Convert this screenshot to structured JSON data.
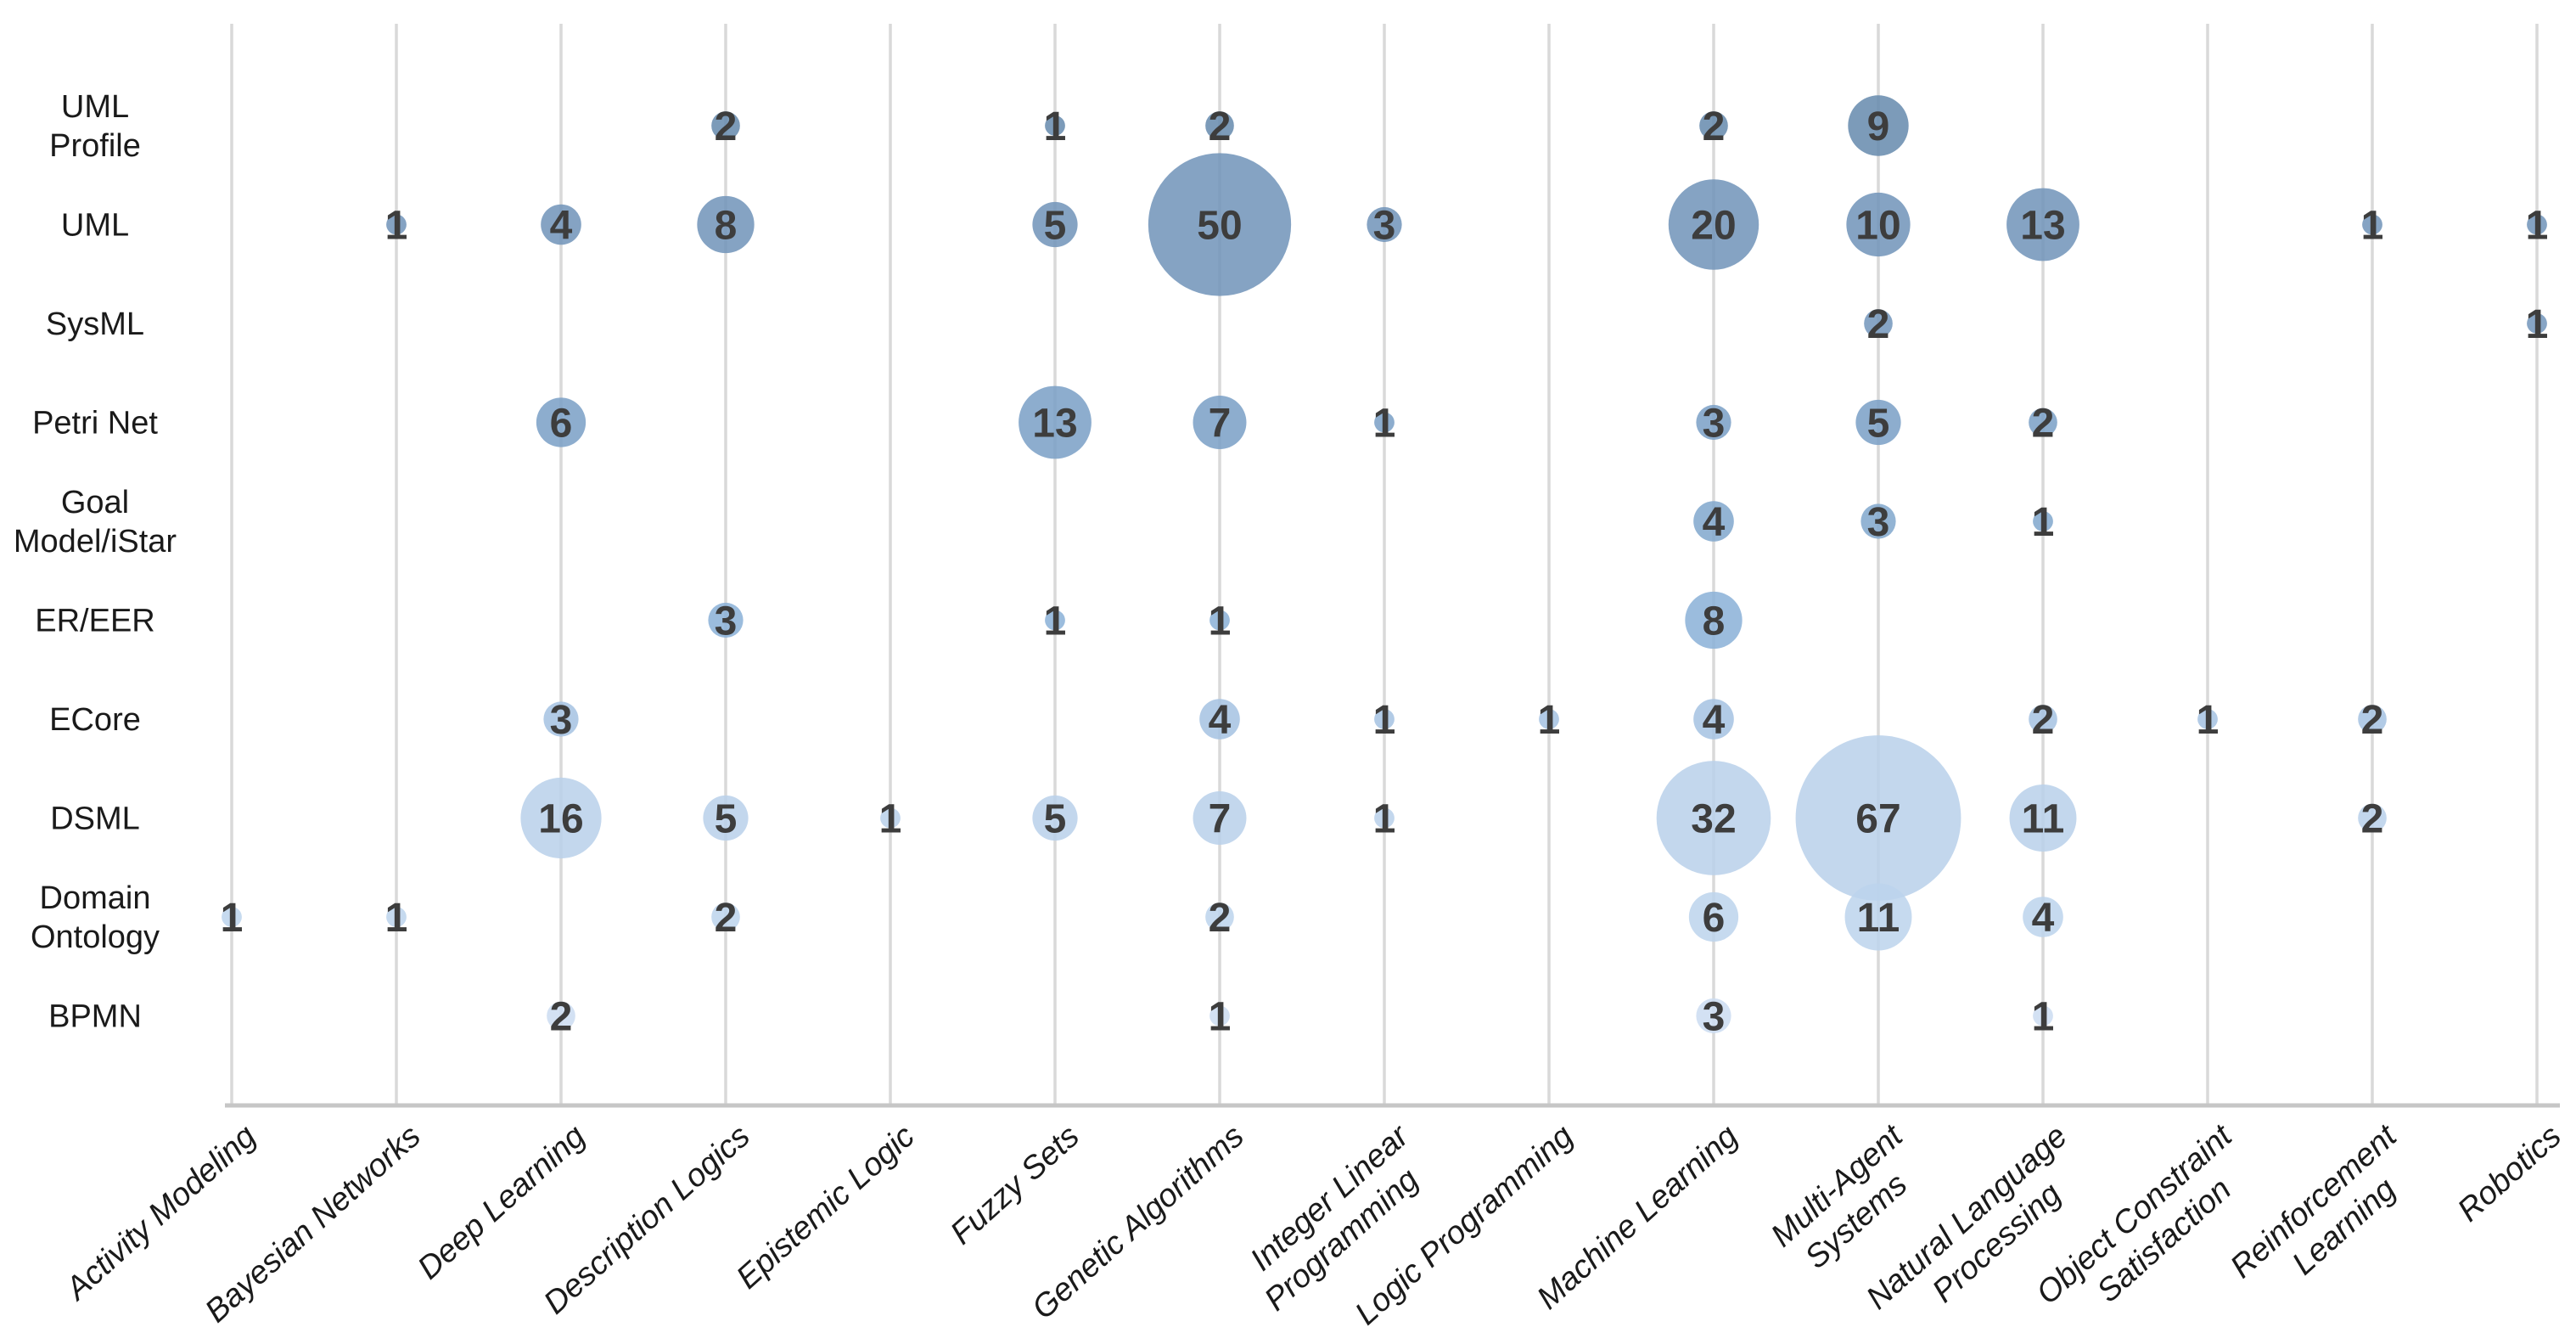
{
  "chart_data": {
    "type": "bubble",
    "title": "",
    "x_categories": [
      "Activity Modeling",
      "Bayesian Networks",
      "Deep Learning",
      "Description Logics",
      "Epistemic Logic",
      "Fuzzy Sets",
      "Genetic Algorithms",
      "Integer Linear Programming",
      "Logic Programming",
      "Machine Learning",
      "Multi-Agent Systems",
      "Natural Language Processing",
      "Object Constraint Satisfaction",
      "Reinforcement Learning",
      "Robotics"
    ],
    "y_categories": [
      "UML Profile",
      "UML",
      "SysML",
      "Petri Net",
      "Goal Model/iStar",
      "ER/EER",
      "ECore",
      "DSML",
      "Domain Ontology",
      "BPMN"
    ],
    "x_label_lines": {
      "Integer Linear Programming": [
        "Integer Linear",
        "Programming"
      ],
      "Multi-Agent Systems": [
        "Multi-Agent",
        "Systems"
      ],
      "Natural Language Processing": [
        "Natural Language",
        "Processing"
      ],
      "Object Constraint Satisfaction": [
        "Object Constraint",
        "Satisfaction"
      ],
      "Reinforcement Learning": [
        "Reinforcement",
        "Learning"
      ]
    },
    "y_label_lines": {
      "UML Profile": [
        "UML",
        "Profile"
      ],
      "Goal Model/iStar": [
        "Goal",
        "Model/iStar"
      ],
      "Domain Ontology": [
        "Domain",
        "Ontology"
      ]
    },
    "points": [
      {
        "row": "UML Profile",
        "col": "Description Logics",
        "value": 2
      },
      {
        "row": "UML Profile",
        "col": "Fuzzy Sets",
        "value": 1
      },
      {
        "row": "UML Profile",
        "col": "Genetic Algorithms",
        "value": 2
      },
      {
        "row": "UML Profile",
        "col": "Machine Learning",
        "value": 2
      },
      {
        "row": "UML Profile",
        "col": "Multi-Agent Systems",
        "value": 9
      },
      {
        "row": "UML",
        "col": "Bayesian Networks",
        "value": 1
      },
      {
        "row": "UML",
        "col": "Deep Learning",
        "value": 4
      },
      {
        "row": "UML",
        "col": "Description Logics",
        "value": 8
      },
      {
        "row": "UML",
        "col": "Fuzzy Sets",
        "value": 5
      },
      {
        "row": "UML",
        "col": "Genetic Algorithms",
        "value": 50
      },
      {
        "row": "UML",
        "col": "Integer Linear Programming",
        "value": 3
      },
      {
        "row": "UML",
        "col": "Machine Learning",
        "value": 20
      },
      {
        "row": "UML",
        "col": "Multi-Agent Systems",
        "value": 10
      },
      {
        "row": "UML",
        "col": "Natural Language Processing",
        "value": 13
      },
      {
        "row": "UML",
        "col": "Reinforcement Learning",
        "value": 1
      },
      {
        "row": "UML",
        "col": "Robotics",
        "value": 1
      },
      {
        "row": "SysML",
        "col": "Multi-Agent Systems",
        "value": 2
      },
      {
        "row": "SysML",
        "col": "Robotics",
        "value": 1
      },
      {
        "row": "Petri Net",
        "col": "Deep Learning",
        "value": 6
      },
      {
        "row": "Petri Net",
        "col": "Fuzzy Sets",
        "value": 13
      },
      {
        "row": "Petri Net",
        "col": "Genetic Algorithms",
        "value": 7
      },
      {
        "row": "Petri Net",
        "col": "Integer Linear Programming",
        "value": 1
      },
      {
        "row": "Petri Net",
        "col": "Machine Learning",
        "value": 3
      },
      {
        "row": "Petri Net",
        "col": "Multi-Agent Systems",
        "value": 5
      },
      {
        "row": "Petri Net",
        "col": "Natural Language Processing",
        "value": 2
      },
      {
        "row": "Goal Model/iStar",
        "col": "Machine Learning",
        "value": 4
      },
      {
        "row": "Goal Model/iStar",
        "col": "Multi-Agent Systems",
        "value": 3
      },
      {
        "row": "Goal Model/iStar",
        "col": "Natural Language Processing",
        "value": 1
      },
      {
        "row": "ER/EER",
        "col": "Description Logics",
        "value": 3
      },
      {
        "row": "ER/EER",
        "col": "Fuzzy Sets",
        "value": 1
      },
      {
        "row": "ER/EER",
        "col": "Genetic Algorithms",
        "value": 1
      },
      {
        "row": "ER/EER",
        "col": "Machine Learning",
        "value": 8
      },
      {
        "row": "ECore",
        "col": "Deep Learning",
        "value": 3
      },
      {
        "row": "ECore",
        "col": "Genetic Algorithms",
        "value": 4
      },
      {
        "row": "ECore",
        "col": "Integer Linear Programming",
        "value": 1
      },
      {
        "row": "ECore",
        "col": "Logic Programming",
        "value": 1
      },
      {
        "row": "ECore",
        "col": "Machine Learning",
        "value": 4
      },
      {
        "row": "ECore",
        "col": "Natural Language Processing",
        "value": 2
      },
      {
        "row": "ECore",
        "col": "Object Constraint Satisfaction",
        "value": 1
      },
      {
        "row": "ECore",
        "col": "Reinforcement Learning",
        "value": 2
      },
      {
        "row": "DSML",
        "col": "Deep Learning",
        "value": 16
      },
      {
        "row": "DSML",
        "col": "Description Logics",
        "value": 5
      },
      {
        "row": "DSML",
        "col": "Epistemic Logic",
        "value": 1
      },
      {
        "row": "DSML",
        "col": "Fuzzy Sets",
        "value": 5
      },
      {
        "row": "DSML",
        "col": "Genetic Algorithms",
        "value": 7
      },
      {
        "row": "DSML",
        "col": "Integer Linear Programming",
        "value": 1
      },
      {
        "row": "DSML",
        "col": "Machine Learning",
        "value": 32
      },
      {
        "row": "DSML",
        "col": "Multi-Agent Systems",
        "value": 67
      },
      {
        "row": "DSML",
        "col": "Natural Language Processing",
        "value": 11
      },
      {
        "row": "DSML",
        "col": "Reinforcement Learning",
        "value": 2
      },
      {
        "row": "Domain Ontology",
        "col": "Activity Modeling",
        "value": 1
      },
      {
        "row": "Domain Ontology",
        "col": "Bayesian Networks",
        "value": 1
      },
      {
        "row": "Domain Ontology",
        "col": "Description Logics",
        "value": 2
      },
      {
        "row": "Domain Ontology",
        "col": "Genetic Algorithms",
        "value": 2
      },
      {
        "row": "Domain Ontology",
        "col": "Machine Learning",
        "value": 6
      },
      {
        "row": "Domain Ontology",
        "col": "Multi-Agent Systems",
        "value": 11
      },
      {
        "row": "Domain Ontology",
        "col": "Natural Language Processing",
        "value": 4
      },
      {
        "row": "BPMN",
        "col": "Deep Learning",
        "value": 2
      },
      {
        "row": "BPMN",
        "col": "Genetic Algorithms",
        "value": 1
      },
      {
        "row": "BPMN",
        "col": "Machine Learning",
        "value": 3
      },
      {
        "row": "BPMN",
        "col": "Natural Language Processing",
        "value": 1
      }
    ],
    "row_colors": {
      "UML Profile": "#6589ad",
      "UML": "#7093b9",
      "SysML": "#7295bb",
      "Petri Net": "#799fc5",
      "Goal Model/iStar": "#80a7cd",
      "ER/EER": "#8ab0d7",
      "ECore": "#a4c2e2",
      "DSML": "#b8d0ea",
      "Domain Ontology": "#bcd3ec",
      "BPMN": "#cbdcf1"
    },
    "styles": {
      "grid_color": "#d9d9d9",
      "axis_color": "#c6c6c6",
      "number_color": "#3d3d3d",
      "label_color": "#1a1a1a",
      "background": "#ffffff"
    },
    "layout_hints": {
      "grid": "vertical-only",
      "legend": "none",
      "bubble_size": "area proportional to value, radius = 11.9 * sqrt(value)"
    }
  }
}
